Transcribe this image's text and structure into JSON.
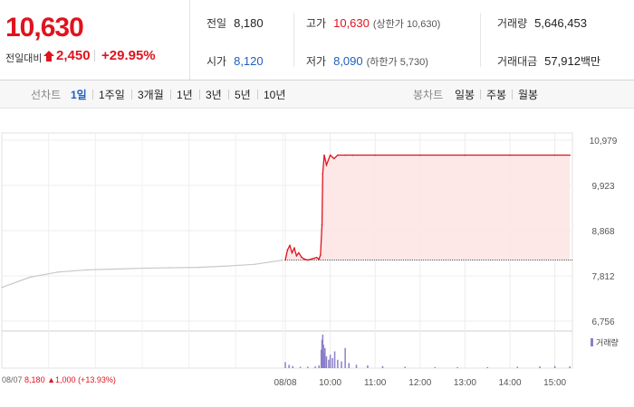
{
  "quote": {
    "price": "10,630",
    "change_label": "전일대비",
    "change_value": "2,450",
    "change_pct": "+29.95%",
    "prev_close_label": "전일",
    "prev_close": "8,180",
    "open_label": "시가",
    "open": "8,120",
    "high_label": "고가",
    "high": "10,630",
    "upper_limit": "(상한가 10,630)",
    "low_label": "저가",
    "low": "8,090",
    "lower_limit": "(하한가 5,730)",
    "volume_label": "거래량",
    "volume": "5,646,453",
    "value_label": "거래대금",
    "value": "57,912",
    "value_unit": "백만"
  },
  "tabs": {
    "line_head": "선차트",
    "line": [
      "1일",
      "1주일",
      "3개월",
      "1년",
      "3년",
      "5년",
      "10년"
    ],
    "active": "1일",
    "candle_head": "봉차트",
    "candle": [
      "일봉",
      "주봉",
      "월봉"
    ]
  },
  "bottom_info": {
    "date": "08/07",
    "price": "8,180",
    "change": "1,000",
    "pct": "(+13.93%)"
  },
  "colors": {
    "up": "#e0131e",
    "down": "#1f5fbf",
    "prev_day_line": "#c8c8c8",
    "today_fill": "#fde4e4",
    "volume": "#8b7fc9"
  },
  "chart_data": {
    "type": "line",
    "yticks": [
      "10,979",
      "9,923",
      "8,868",
      "7,812",
      "6,756"
    ],
    "ylim": [
      6756,
      10979
    ],
    "xticks": [
      "08/08",
      "10:00",
      "11:00",
      "12:00",
      "13:00",
      "14:00",
      "15:00"
    ],
    "prev_session": {
      "label": "08/07",
      "x": [
        0,
        0.1,
        0.2,
        0.3,
        0.4,
        0.5,
        0.6,
        0.7,
        0.8,
        0.9,
        1.0
      ],
      "values": [
        7540,
        7780,
        7900,
        7950,
        7970,
        7990,
        8000,
        8010,
        8040,
        8080,
        8180
      ]
    },
    "today_session": {
      "x": [
        "09:00",
        "09:03",
        "09:06",
        "09:09",
        "09:12",
        "09:15",
        "09:18",
        "09:22",
        "09:26",
        "09:30",
        "09:34",
        "09:38",
        "09:42",
        "09:45",
        "09:47",
        "09:49",
        "09:50",
        "09:52",
        "09:55",
        "10:00",
        "10:05",
        "10:10",
        "10:20",
        "10:30",
        "11:00",
        "12:00",
        "13:00",
        "14:00",
        "15:00",
        "15:20"
      ],
      "values": [
        8180,
        8420,
        8520,
        8350,
        8460,
        8280,
        8350,
        8240,
        8200,
        8180,
        8200,
        8220,
        8240,
        8200,
        8300,
        9000,
        10200,
        10630,
        10400,
        10630,
        10550,
        10630,
        10630,
        10630,
        10630,
        10630,
        10630,
        10630,
        10630,
        10630
      ],
      "base": 8180
    },
    "volume_legend": "거래량",
    "volume": {
      "x": [
        "09:00",
        "09:05",
        "09:10",
        "09:20",
        "09:30",
        "09:40",
        "09:45",
        "09:48",
        "09:49",
        "09:50",
        "09:51",
        "09:52",
        "09:53",
        "09:55",
        "09:58",
        "10:00",
        "10:03",
        "10:06",
        "10:10",
        "10:15",
        "10:20",
        "10:25",
        "10:35",
        "10:50",
        "11:10",
        "11:40",
        "12:20",
        "12:50",
        "13:30",
        "14:10",
        "14:40",
        "15:00",
        "15:20"
      ],
      "values": [
        18,
        10,
        6,
        4,
        4,
        5,
        8,
        55,
        85,
        100,
        70,
        45,
        60,
        35,
        25,
        40,
        30,
        50,
        25,
        20,
        60,
        15,
        10,
        8,
        6,
        4,
        3,
        3,
        3,
        4,
        5,
        6,
        5
      ]
    }
  }
}
